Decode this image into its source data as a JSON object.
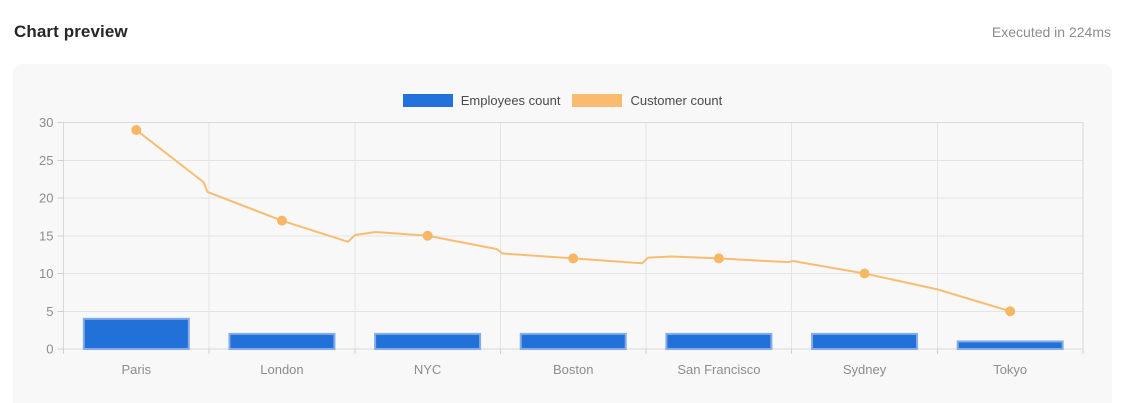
{
  "header": {
    "title": "Chart preview",
    "execution_status": "Executed in 224ms"
  },
  "legend": [
    {
      "label": "Employees count",
      "color": "#2372db"
    },
    {
      "label": "Customer count",
      "color": "#f9bb70"
    }
  ],
  "chart_data": {
    "type": "bar",
    "subtype": "mixed-bar-line",
    "title": "",
    "xlabel": "",
    "ylabel": "",
    "categories": [
      "Paris",
      "London",
      "NYC",
      "Boston",
      "San Francisco",
      "Sydney",
      "Tokyo"
    ],
    "series": [
      {
        "name": "Employees count",
        "type": "bar",
        "values": [
          4,
          2,
          2,
          2,
          2,
          2,
          1
        ],
        "color": "#2171d8",
        "border_color": "#85ace8"
      },
      {
        "name": "Customer count",
        "type": "line",
        "values": [
          29,
          17,
          15,
          12,
          12,
          10,
          5
        ],
        "color": "#f9bd72",
        "marker_color": "#f8b765"
      }
    ],
    "ylim": [
      0,
      30
    ],
    "yticks": [
      0,
      5,
      10,
      15,
      20,
      25,
      30
    ],
    "grid": true,
    "legend_position": "top",
    "line_trace_note": "x in px from plot left edge (plot width 1019.5), v in data units; captures small bends of the rendered line between marked points",
    "line_trace": [
      [
        72.8,
        29
      ],
      [
        140,
        22.1
      ],
      [
        144,
        20.8
      ],
      [
        218.5,
        17
      ],
      [
        284.5,
        14.2
      ],
      [
        291.5,
        15.1
      ],
      [
        312,
        15.5
      ],
      [
        364.1,
        15
      ],
      [
        433,
        13.25
      ],
      [
        439,
        12.65
      ],
      [
        509.8,
        12
      ],
      [
        578.6,
        11.35
      ],
      [
        584.6,
        12.1
      ],
      [
        608,
        12.25
      ],
      [
        655.4,
        12
      ],
      [
        724,
        11.5
      ],
      [
        729.5,
        11.65
      ],
      [
        801.1,
        10
      ],
      [
        873.9,
        7.9
      ],
      [
        946.7,
        5
      ]
    ],
    "colors": {
      "panel_background": "#f8f8f9",
      "plot_border": "#d9d9dd",
      "gridline": "#e4e4e8",
      "tick": "#cfcfd4",
      "axis_label": "#8d8d91"
    }
  }
}
